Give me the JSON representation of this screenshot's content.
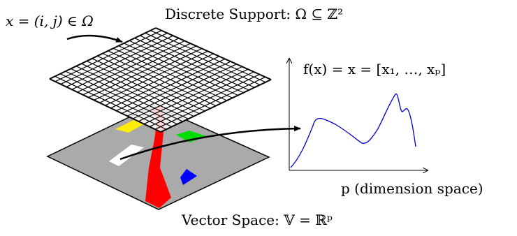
{
  "labels": {
    "support_title": "Discrete Support: Ω ⊆ ℤ²",
    "pixel_coord": "x = (i, j) ∈ Ω",
    "feature_map": "f(x) = x = [x₁, …, xₚ]",
    "dimension_axis": "p (dimension space)",
    "vector_space": "Vector Space: 𝕍 = ℝᵖ"
  },
  "colors": {
    "plane_fill": "#aaaaaa",
    "road": "#ff0000",
    "yellow_patch": "#ffee00",
    "green_patch": "#00dd00",
    "blue_patch": "#0000ff",
    "white_patch": "#ffffff",
    "curve": "#0000cc"
  }
}
